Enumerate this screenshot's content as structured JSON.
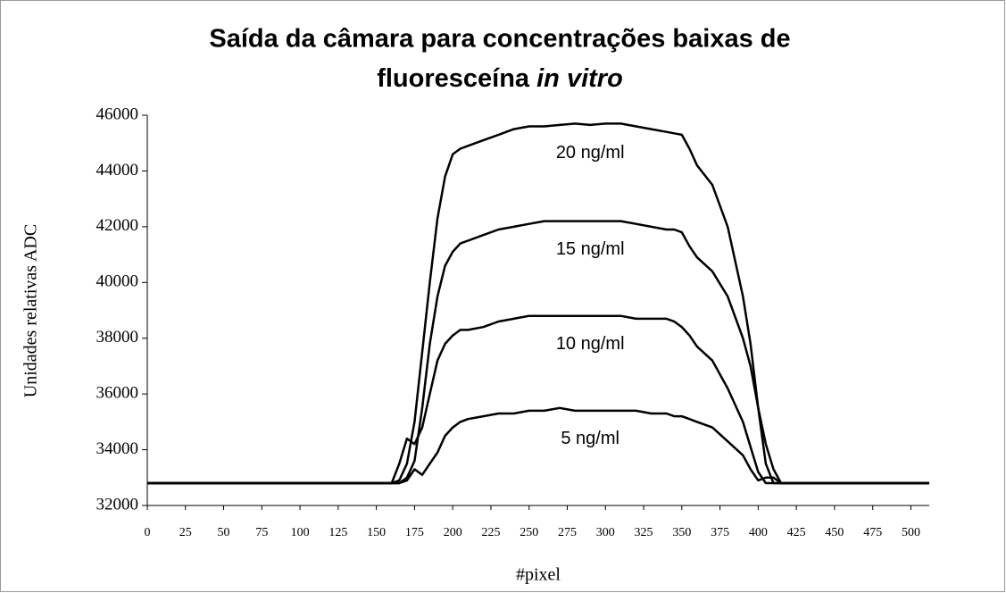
{
  "chart_data": {
    "type": "line",
    "title": {
      "line1": "Saída da câmara para concentrações baixas de",
      "line2": "fluoresceína",
      "line2_italic": "in vitro"
    },
    "x_label": "#pixel",
    "y_label": "Unidades relativas ADC",
    "x": [
      0,
      160,
      165,
      170,
      175,
      180,
      185,
      190,
      195,
      200,
      205,
      210,
      220,
      230,
      240,
      250,
      260,
      270,
      280,
      290,
      300,
      310,
      320,
      330,
      340,
      345,
      350,
      355,
      360,
      370,
      380,
      390,
      395,
      400,
      405,
      410,
      415,
      420,
      512
    ],
    "series": [
      {
        "name": "20 ng/ml",
        "color": "#000000",
        "values": [
          32800,
          32800,
          32900,
          33500,
          35000,
          37500,
          40000,
          42300,
          43800,
          44600,
          44800,
          44900,
          45100,
          45300,
          45500,
          45600,
          45600,
          45650,
          45700,
          45650,
          45700,
          45700,
          45600,
          45500,
          45400,
          45350,
          45300,
          44800,
          44200,
          43500,
          42000,
          39500,
          37800,
          35500,
          33500,
          32800,
          32800,
          32800,
          32800
        ]
      },
      {
        "name": "15 ng/ml",
        "color": "#000000",
        "values": [
          32800,
          32800,
          32800,
          33000,
          33600,
          35500,
          37800,
          39500,
          40600,
          41100,
          41400,
          41500,
          41700,
          41900,
          42000,
          42100,
          42200,
          42200,
          42200,
          42200,
          42200,
          42200,
          42100,
          42000,
          41900,
          41900,
          41800,
          41300,
          40900,
          40400,
          39500,
          38000,
          37000,
          35500,
          34200,
          33300,
          32800,
          32800,
          32800
        ]
      },
      {
        "name": "10 ng/ml",
        "color": "#000000",
        "values": [
          32800,
          32800,
          33500,
          34400,
          34200,
          34800,
          36000,
          37200,
          37800,
          38100,
          38300,
          38300,
          38400,
          38600,
          38700,
          38800,
          38800,
          38800,
          38800,
          38800,
          38800,
          38800,
          38700,
          38700,
          38700,
          38600,
          38400,
          38100,
          37700,
          37200,
          36200,
          35000,
          34100,
          33200,
          32800,
          32800,
          32800,
          32800,
          32800
        ]
      },
      {
        "name": "5 ng/ml",
        "color": "#000000",
        "values": [
          32800,
          32800,
          32800,
          32900,
          33300,
          33100,
          33500,
          33900,
          34500,
          34800,
          35000,
          35100,
          35200,
          35300,
          35300,
          35400,
          35400,
          35500,
          35400,
          35400,
          35400,
          35400,
          35400,
          35300,
          35300,
          35200,
          35200,
          35100,
          35000,
          34800,
          34300,
          33800,
          33300,
          32900,
          33000,
          33000,
          32800,
          32800,
          32800
        ]
      }
    ],
    "xlim": [
      0,
      512
    ],
    "ylim": [
      32000,
      46000
    ],
    "xticks": [
      0,
      25,
      50,
      75,
      100,
      125,
      150,
      175,
      200,
      225,
      250,
      275,
      300,
      325,
      350,
      375,
      400,
      425,
      450,
      475,
      500
    ],
    "yticks": [
      32000,
      34000,
      36000,
      38000,
      40000,
      42000,
      44000,
      46000
    ],
    "grid": false
  }
}
